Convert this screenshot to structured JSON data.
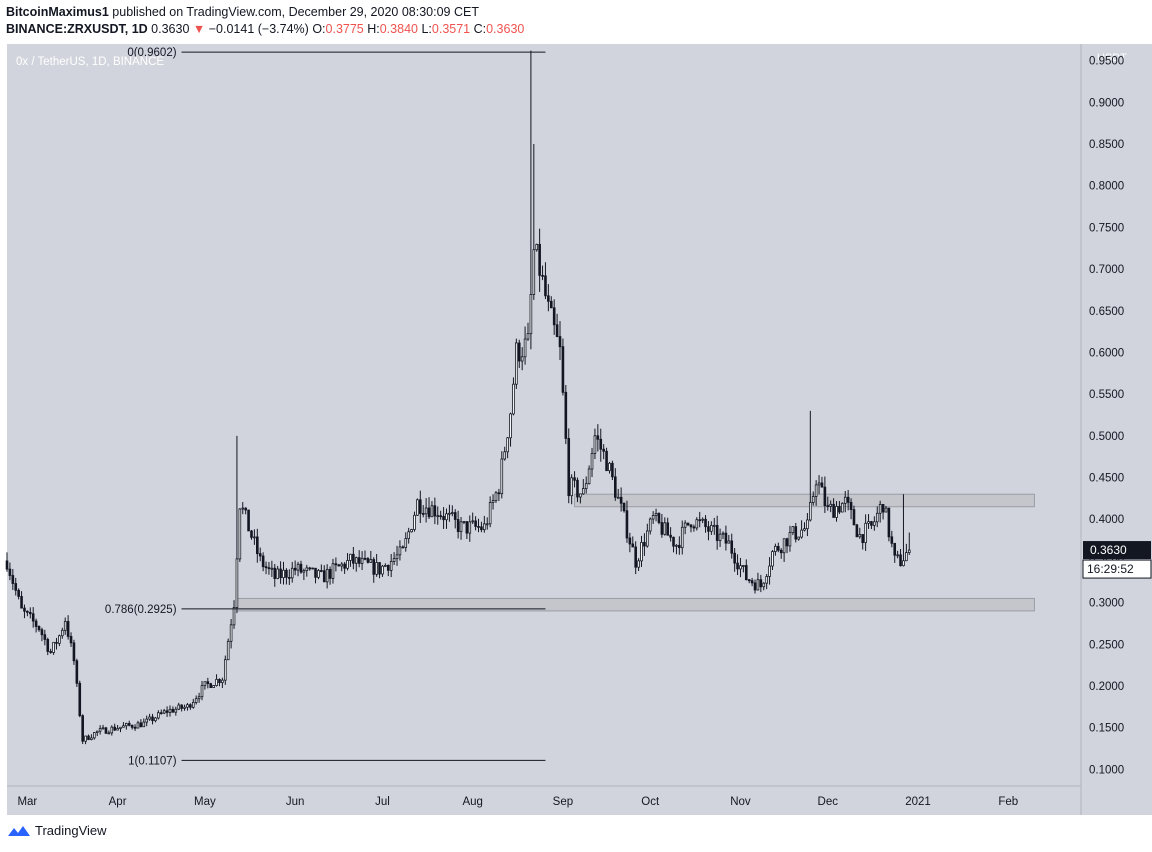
{
  "header": {
    "publisher": "BitcoinMaximus1",
    "published_text": "published on TradingView.com, December 29, 2020 08:30:09 CET",
    "symbol": "BINANCE:ZRXUSDT, 1D",
    "last": "0.3630",
    "change_arrow": "▼",
    "change": "−0.0141 (−3.74%)",
    "o_label": "O:",
    "o": "0.3775",
    "h_label": "H:",
    "h": "0.3840",
    "l_label": "L:",
    "l": "0.3571",
    "c_label": "C:",
    "c": "0.3630"
  },
  "footer": {
    "brand": "TradingView",
    "logo_icon": "tradingview-logo-icon"
  },
  "colors": {
    "plot_bg": "#d1d4dc",
    "candle": "#131722",
    "down": "#ef5350",
    "zone_fill": "#c3c5cb",
    "zone_border": "#9598a1"
  },
  "chart_data": {
    "type": "candlestick",
    "title": "0x / TetherUS, 1D, BINANCE",
    "axis_unit": "USDT",
    "x_range": [
      "2020-02-23",
      "2021-02-26"
    ],
    "ylim": [
      0.08,
      0.97
    ],
    "y_ticks": [
      "0.1000",
      "0.1500",
      "0.2000",
      "0.2500",
      "0.3000",
      "0.3500",
      "0.4000",
      "0.4500",
      "0.5000",
      "0.5500",
      "0.6000",
      "0.6500",
      "0.7000",
      "0.7500",
      "0.8000",
      "0.8500",
      "0.9000",
      "0.9500"
    ],
    "x_ticks": [
      {
        "date": "2020-03-01",
        "label": "Mar"
      },
      {
        "date": "2020-04-01",
        "label": "Apr"
      },
      {
        "date": "2020-05-01",
        "label": "May"
      },
      {
        "date": "2020-06-01",
        "label": "Jun"
      },
      {
        "date": "2020-07-01",
        "label": "Jul"
      },
      {
        "date": "2020-08-01",
        "label": "Aug"
      },
      {
        "date": "2020-09-01",
        "label": "Sep"
      },
      {
        "date": "2020-10-01",
        "label": "Oct"
      },
      {
        "date": "2020-11-01",
        "label": "Nov"
      },
      {
        "date": "2020-12-01",
        "label": "Dec"
      },
      {
        "date": "2021-01-01",
        "label": "2021"
      },
      {
        "date": "2021-02-01",
        "label": "Feb"
      }
    ],
    "price_trend": [
      [
        "2020-02-23",
        0.35
      ],
      [
        "2020-02-28",
        0.29
      ],
      [
        "2020-03-05",
        0.27
      ],
      [
        "2020-03-09",
        0.24
      ],
      [
        "2020-03-12",
        0.26
      ],
      [
        "2020-03-14",
        0.28
      ],
      [
        "2020-03-17",
        0.23
      ],
      [
        "2020-03-20",
        0.135
      ],
      [
        "2020-03-25",
        0.145
      ],
      [
        "2020-04-01",
        0.15
      ],
      [
        "2020-04-10",
        0.155
      ],
      [
        "2020-04-18",
        0.17
      ],
      [
        "2020-04-25",
        0.175
      ],
      [
        "2020-05-01",
        0.2
      ],
      [
        "2020-05-07",
        0.21
      ],
      [
        "2020-05-11",
        0.3
      ],
      [
        "2020-05-13",
        0.42
      ],
      [
        "2020-05-16",
        0.39
      ],
      [
        "2020-05-20",
        0.35
      ],
      [
        "2020-05-25",
        0.33
      ],
      [
        "2020-06-01",
        0.34
      ],
      [
        "2020-06-10",
        0.33
      ],
      [
        "2020-06-20",
        0.35
      ],
      [
        "2020-06-30",
        0.34
      ],
      [
        "2020-07-08",
        0.36
      ],
      [
        "2020-07-13",
        0.42
      ],
      [
        "2020-07-20",
        0.41
      ],
      [
        "2020-07-28",
        0.39
      ],
      [
        "2020-08-05",
        0.39
      ],
      [
        "2020-08-10",
        0.44
      ],
      [
        "2020-08-14",
        0.53
      ],
      [
        "2020-08-16",
        0.6
      ],
      [
        "2020-08-20",
        0.61
      ],
      [
        "2020-08-22",
        0.72
      ],
      [
        "2020-08-24",
        0.7
      ],
      [
        "2020-08-27",
        0.65
      ],
      [
        "2020-08-31",
        0.6
      ],
      [
        "2020-09-03",
        0.44
      ],
      [
        "2020-09-08",
        0.43
      ],
      [
        "2020-09-12",
        0.5
      ],
      [
        "2020-09-16",
        0.47
      ],
      [
        "2020-09-22",
        0.4
      ],
      [
        "2020-09-26",
        0.35
      ],
      [
        "2020-10-02",
        0.4
      ],
      [
        "2020-10-10",
        0.37
      ],
      [
        "2020-10-15",
        0.4
      ],
      [
        "2020-10-20",
        0.39
      ],
      [
        "2020-10-28",
        0.37
      ],
      [
        "2020-11-03",
        0.33
      ],
      [
        "2020-11-08",
        0.32
      ],
      [
        "2020-11-12",
        0.36
      ],
      [
        "2020-11-18",
        0.38
      ],
      [
        "2020-11-24",
        0.39
      ],
      [
        "2020-11-27",
        0.45
      ],
      [
        "2020-12-01",
        0.41
      ],
      [
        "2020-12-07",
        0.42
      ],
      [
        "2020-12-12",
        0.38
      ],
      [
        "2020-12-16",
        0.39
      ],
      [
        "2020-12-20",
        0.42
      ],
      [
        "2020-12-24",
        0.35
      ],
      [
        "2020-12-26",
        0.35
      ],
      [
        "2020-12-29",
        0.363
      ]
    ],
    "spikes": [
      {
        "date": "2020-05-12",
        "high": 0.5
      },
      {
        "date": "2020-08-21",
        "high": 0.962
      },
      {
        "date": "2020-08-22",
        "high": 0.85
      },
      {
        "date": "2020-11-25",
        "high": 0.53
      },
      {
        "date": "2020-12-27",
        "high": 0.43
      }
    ],
    "fib_levels": [
      {
        "label": "0(0.9602)",
        "value": 0.9602
      },
      {
        "label": "0.786(0.2925)",
        "value": 0.2925
      },
      {
        "label": "1(0.1107)",
        "value": 0.1107
      }
    ],
    "fib_range": [
      "2020-02-28",
      "2020-08-26"
    ],
    "zones": [
      {
        "from": 0.415,
        "to": 0.43,
        "start": "2020-09-05",
        "end": "2021-02-10"
      },
      {
        "from": 0.29,
        "to": 0.305,
        "start": "2020-05-12",
        "end": "2021-02-10"
      }
    ],
    "last_price_label": "0.3630",
    "countdown_label": "16:29:52"
  }
}
